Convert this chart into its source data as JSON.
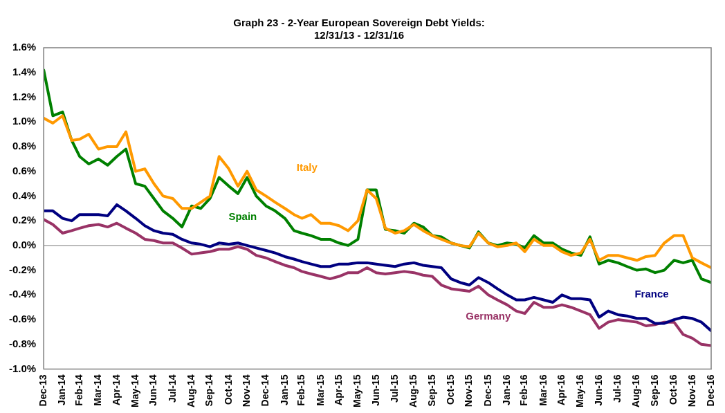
{
  "chart_data": {
    "type": "line",
    "title": "Graph 23 - 2-Year European Sovereign Debt Yields:\n12/31/13 - 12/31/16",
    "x": [
      "2013-12-31",
      "2014-01-15",
      "2014-01-31",
      "2014-02-15",
      "2014-02-28",
      "2014-03-15",
      "2014-03-31",
      "2014-04-15",
      "2014-04-30",
      "2014-05-15",
      "2014-05-31",
      "2014-06-15",
      "2014-06-30",
      "2014-07-15",
      "2014-07-31",
      "2014-08-15",
      "2014-08-31",
      "2014-09-15",
      "2014-09-30",
      "2014-10-15",
      "2014-10-31",
      "2014-11-15",
      "2014-11-30",
      "2014-12-15",
      "2014-12-31",
      "2015-01-15",
      "2015-01-31",
      "2015-02-15",
      "2015-02-28",
      "2015-03-15",
      "2015-03-31",
      "2015-04-15",
      "2015-04-30",
      "2015-05-15",
      "2015-05-31",
      "2015-06-15",
      "2015-06-30",
      "2015-07-15",
      "2015-07-31",
      "2015-08-15",
      "2015-08-31",
      "2015-09-15",
      "2015-09-30",
      "2015-10-15",
      "2015-10-31",
      "2015-11-15",
      "2015-11-30",
      "2015-12-15",
      "2015-12-31",
      "2016-01-15",
      "2016-01-31",
      "2016-02-15",
      "2016-02-29",
      "2016-03-15",
      "2016-03-31",
      "2016-04-15",
      "2016-04-30",
      "2016-05-15",
      "2016-05-31",
      "2016-06-15",
      "2016-06-30",
      "2016-07-15",
      "2016-07-31",
      "2016-08-15",
      "2016-08-31",
      "2016-09-15",
      "2016-09-30",
      "2016-10-15",
      "2016-10-31",
      "2016-11-15",
      "2016-11-30",
      "2016-12-15",
      "2016-12-31"
    ],
    "series": [
      {
        "name": "Italy",
        "color": "#ff9900",
        "values": [
          1.03,
          0.99,
          1.05,
          0.85,
          0.86,
          0.9,
          0.78,
          0.8,
          0.8,
          0.92,
          0.6,
          0.62,
          0.5,
          0.4,
          0.38,
          0.3,
          0.3,
          0.35,
          0.4,
          0.72,
          0.62,
          0.48,
          0.6,
          0.45,
          0.4,
          0.35,
          0.3,
          0.25,
          0.22,
          0.25,
          0.18,
          0.18,
          0.16,
          0.12,
          0.2,
          0.45,
          0.38,
          0.14,
          0.1,
          0.12,
          0.17,
          0.12,
          0.08,
          0.05,
          0.02,
          0.0,
          -0.01,
          0.1,
          0.02,
          -0.01,
          0.0,
          0.02,
          -0.05,
          0.05,
          0.0,
          0.0,
          -0.05,
          -0.08,
          -0.06,
          0.05,
          -0.12,
          -0.08,
          -0.08,
          -0.1,
          -0.12,
          -0.09,
          -0.08,
          0.02,
          0.08,
          0.08,
          -0.1,
          -0.14,
          -0.18
        ]
      },
      {
        "name": "Spain",
        "color": "#008000",
        "values": [
          1.42,
          1.05,
          1.08,
          0.85,
          0.72,
          0.66,
          0.7,
          0.65,
          0.72,
          0.78,
          0.5,
          0.48,
          0.38,
          0.28,
          0.22,
          0.15,
          0.32,
          0.3,
          0.38,
          0.55,
          0.48,
          0.42,
          0.55,
          0.4,
          0.32,
          0.28,
          0.22,
          0.12,
          0.1,
          0.08,
          0.05,
          0.05,
          0.02,
          0.0,
          0.05,
          0.45,
          0.45,
          0.13,
          0.12,
          0.1,
          0.18,
          0.15,
          0.08,
          0.07,
          0.02,
          0.0,
          -0.02,
          0.11,
          0.02,
          0.0,
          0.02,
          0.01,
          -0.02,
          0.08,
          0.02,
          0.02,
          -0.03,
          -0.06,
          -0.08,
          0.07,
          -0.15,
          -0.12,
          -0.14,
          -0.17,
          -0.2,
          -0.19,
          -0.22,
          -0.2,
          -0.12,
          -0.14,
          -0.12,
          -0.27,
          -0.3
        ]
      },
      {
        "name": "France",
        "color": "#000080",
        "values": [
          0.28,
          0.28,
          0.22,
          0.2,
          0.25,
          0.25,
          0.25,
          0.24,
          0.33,
          0.28,
          0.22,
          0.16,
          0.12,
          0.1,
          0.09,
          0.05,
          0.02,
          0.01,
          -0.01,
          0.02,
          0.01,
          0.02,
          0.0,
          -0.02,
          -0.04,
          -0.06,
          -0.09,
          -0.11,
          -0.13,
          -0.15,
          -0.17,
          -0.17,
          -0.15,
          -0.15,
          -0.14,
          -0.14,
          -0.15,
          -0.16,
          -0.17,
          -0.15,
          -0.14,
          -0.16,
          -0.17,
          -0.18,
          -0.27,
          -0.3,
          -0.32,
          -0.26,
          -0.3,
          -0.35,
          -0.4,
          -0.44,
          -0.44,
          -0.42,
          -0.44,
          -0.46,
          -0.4,
          -0.43,
          -0.43,
          -0.44,
          -0.58,
          -0.53,
          -0.56,
          -0.57,
          -0.59,
          -0.59,
          -0.63,
          -0.63,
          -0.6,
          -0.58,
          -0.59,
          -0.62,
          -0.69
        ]
      },
      {
        "name": "Germany",
        "color": "#993366",
        "values": [
          0.21,
          0.17,
          0.1,
          0.12,
          0.14,
          0.16,
          0.17,
          0.15,
          0.18,
          0.14,
          0.1,
          0.05,
          0.04,
          0.02,
          0.02,
          -0.02,
          -0.07,
          -0.06,
          -0.05,
          -0.03,
          -0.03,
          -0.01,
          -0.03,
          -0.08,
          -0.1,
          -0.13,
          -0.16,
          -0.18,
          -0.21,
          -0.23,
          -0.25,
          -0.27,
          -0.25,
          -0.22,
          -0.22,
          -0.18,
          -0.22,
          -0.23,
          -0.22,
          -0.21,
          -0.22,
          -0.24,
          -0.25,
          -0.32,
          -0.35,
          -0.36,
          -0.37,
          -0.33,
          -0.4,
          -0.44,
          -0.48,
          -0.53,
          -0.55,
          -0.46,
          -0.5,
          -0.5,
          -0.48,
          -0.5,
          -0.53,
          -0.56,
          -0.67,
          -0.62,
          -0.6,
          -0.61,
          -0.62,
          -0.65,
          -0.64,
          -0.62,
          -0.62,
          -0.72,
          -0.75,
          -0.8,
          -0.81
        ]
      }
    ],
    "xlim": [
      "2013-12-31",
      "2016-12-31"
    ],
    "xticks": [
      {
        "value": "2013-12-31",
        "label": "Dec-13"
      },
      {
        "value": "2014-01-31",
        "label": "Jan-14"
      },
      {
        "value": "2014-02-28",
        "label": "Feb-14"
      },
      {
        "value": "2014-03-31",
        "label": "Mar-14"
      },
      {
        "value": "2014-04-30",
        "label": "Apr-14"
      },
      {
        "value": "2014-05-31",
        "label": "May-14"
      },
      {
        "value": "2014-06-30",
        "label": "Jun-14"
      },
      {
        "value": "2014-07-31",
        "label": "Jul-14"
      },
      {
        "value": "2014-08-31",
        "label": "Aug-14"
      },
      {
        "value": "2014-09-30",
        "label": "Sep-14"
      },
      {
        "value": "2014-10-31",
        "label": "Oct-14"
      },
      {
        "value": "2014-11-30",
        "label": "Nov-14"
      },
      {
        "value": "2014-12-31",
        "label": "Dec-14"
      },
      {
        "value": "2015-01-31",
        "label": "Jan-15"
      },
      {
        "value": "2015-02-28",
        "label": "Feb-15"
      },
      {
        "value": "2015-03-31",
        "label": "Mar-15"
      },
      {
        "value": "2015-04-30",
        "label": "Apr-15"
      },
      {
        "value": "2015-05-31",
        "label": "May-15"
      },
      {
        "value": "2015-06-30",
        "label": "Jun-15"
      },
      {
        "value": "2015-07-31",
        "label": "Jul-15"
      },
      {
        "value": "2015-08-31",
        "label": "Aug-15"
      },
      {
        "value": "2015-09-30",
        "label": "Sep-15"
      },
      {
        "value": "2015-10-31",
        "label": "Oct-15"
      },
      {
        "value": "2015-11-30",
        "label": "Nov-15"
      },
      {
        "value": "2015-12-31",
        "label": "Dec-15"
      },
      {
        "value": "2016-01-31",
        "label": "Jan-16"
      },
      {
        "value": "2016-02-29",
        "label": "Feb-16"
      },
      {
        "value": "2016-03-31",
        "label": "Mar-16"
      },
      {
        "value": "2016-04-30",
        "label": "Apr-16"
      },
      {
        "value": "2016-05-31",
        "label": "May-16"
      },
      {
        "value": "2016-06-30",
        "label": "Jun-16"
      },
      {
        "value": "2016-07-31",
        "label": "Jul-16"
      },
      {
        "value": "2016-08-31",
        "label": "Aug-16"
      },
      {
        "value": "2016-09-30",
        "label": "Sep-16"
      },
      {
        "value": "2016-10-31",
        "label": "Oct-16"
      },
      {
        "value": "2016-11-30",
        "label": "Nov-16"
      },
      {
        "value": "2016-12-31",
        "label": "Dec-16"
      }
    ],
    "ylim": [
      -1.0,
      1.6
    ],
    "yticks": [
      {
        "value": -1.0,
        "label": "-1.0%"
      },
      {
        "value": -0.8,
        "label": "-0.8%"
      },
      {
        "value": -0.6,
        "label": "-0.6%"
      },
      {
        "value": -0.4,
        "label": "-0.4%"
      },
      {
        "value": -0.2,
        "label": "-0.2%"
      },
      {
        "value": 0.0,
        "label": "0.0%"
      },
      {
        "value": 0.2,
        "label": "0.2%"
      },
      {
        "value": 0.4,
        "label": "0.4%"
      },
      {
        "value": 0.6,
        "label": "0.6%"
      },
      {
        "value": 0.8,
        "label": "0.8%"
      },
      {
        "value": 1.0,
        "label": "1.0%"
      },
      {
        "value": 1.2,
        "label": "1.2%"
      },
      {
        "value": 1.4,
        "label": "1.4%"
      },
      {
        "value": 1.6,
        "label": "1.6%"
      }
    ],
    "ref_lines": [
      {
        "axis": "y",
        "value": 0,
        "color": "#808080"
      }
    ],
    "marker": "none",
    "line_style": "solid",
    "legend": false,
    "grid": false
  }
}
